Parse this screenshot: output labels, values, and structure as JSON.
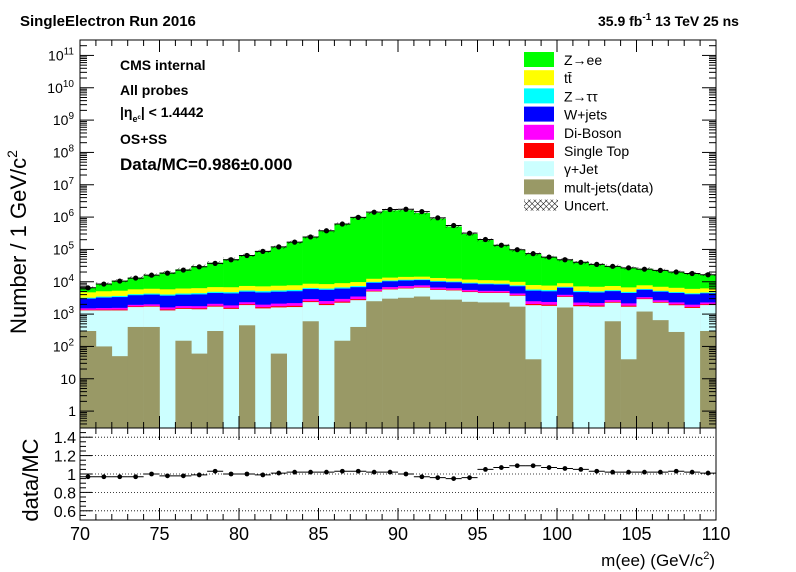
{
  "header": {
    "left_title": "SingleElectron Run 2016",
    "right_lumi": "35.9 fb",
    "right_lumi_exp": "-1",
    "right_energy": " 13 TeV 25 ns"
  },
  "annotations": {
    "cms": "CMS internal",
    "probes": "All probes",
    "eta_a": "|η",
    "eta_sub": "e",
    "eta_sub2": "c",
    "eta_b": "| < 1.4442",
    "charge": "OS+SS",
    "ratio_text": "Data/MC=0.986±0.000"
  },
  "axes": {
    "ylabel_main": "Number / 1 GeV/c",
    "ylabel_main_exp": "2",
    "ylabel_ratio": "data/MC",
    "xlabel": "m(ee) (GeV/c",
    "xlabel_exp": "2",
    "xlabel_close": ")"
  },
  "legend": [
    {
      "name": "Z→ee",
      "color": "#00ff00"
    },
    {
      "name": "tt̄",
      "color": "#ffff00"
    },
    {
      "name": "Z→ττ",
      "color": "#00ffff"
    },
    {
      "name": "W+jets",
      "color": "#0000ff"
    },
    {
      "name": "Di-Boson",
      "color": "#ff00ff"
    },
    {
      "name": "Single Top",
      "color": "#ff0000"
    },
    {
      "name": "γ+Jet",
      "color": "#ccffff"
    },
    {
      "name": "mult-jets(data)",
      "color": "#999966"
    },
    {
      "name": "Uncert.",
      "color": "hatch"
    }
  ],
  "chart_data": {
    "type": "bar",
    "x_bins": [
      70.5,
      71.5,
      72.5,
      73.5,
      74.5,
      75.5,
      76.5,
      77.5,
      78.5,
      79.5,
      80.5,
      81.5,
      82.5,
      83.5,
      84.5,
      85.5,
      86.5,
      87.5,
      88.5,
      89.5,
      90.5,
      91.5,
      92.5,
      93.5,
      94.5,
      95.5,
      96.5,
      97.5,
      98.5,
      99.5,
      100.5,
      101.5,
      102.5,
      103.5,
      104.5,
      105.5,
      106.5,
      107.5,
      108.5,
      109.5
    ],
    "xlim": [
      70,
      110
    ],
    "ylim_main": [
      0.3,
      300000000000
    ],
    "ylog": true,
    "xticks": [
      70,
      75,
      80,
      85,
      90,
      95,
      100,
      105,
      110
    ],
    "yticks_main": [
      {
        "v": 1,
        "label": "1"
      },
      {
        "v": 10,
        "label": "10"
      },
      {
        "v": 100,
        "label": "10",
        "exp": "2"
      },
      {
        "v": 1000,
        "label": "10",
        "exp": "3"
      },
      {
        "v": 10000,
        "label": "10",
        "exp": "4"
      },
      {
        "v": 100000,
        "label": "10",
        "exp": "5"
      },
      {
        "v": 1000000,
        "label": "10",
        "exp": "6"
      },
      {
        "v": 10000000,
        "label": "10",
        "exp": "7"
      },
      {
        "v": 100000000,
        "label": "10",
        "exp": "8"
      },
      {
        "v": 1000000000,
        "label": "10",
        "exp": "9"
      },
      {
        "v": 10000000000,
        "label": "10",
        "exp": "10"
      },
      {
        "v": 100000000000,
        "label": "10",
        "exp": "11"
      }
    ],
    "stack_series": [
      {
        "name": "mult-jets(data)",
        "color": "#999966",
        "values": [
          300,
          100,
          50,
          400,
          400,
          0.1,
          150,
          60,
          300,
          0.1,
          450,
          0.1,
          60,
          0.1,
          600,
          0.1,
          150,
          400,
          2500,
          3000,
          3200,
          3500,
          2800,
          2800,
          2400,
          2300,
          2300,
          1700,
          40,
          0.1,
          1600,
          0.1,
          0.1,
          600,
          40,
          1200,
          650,
          280,
          0.1,
          300
        ]
      },
      {
        "name": "γ+Jet",
        "color": "#ccffff",
        "values": [
          1000,
          1200,
          1250,
          1250,
          1300,
          1300,
          1300,
          1350,
          1400,
          1450,
          1450,
          1500,
          1550,
          1650,
          1750,
          1900,
          2100,
          2300,
          2500,
          2800,
          3000,
          3100,
          2800,
          2600,
          2400,
          2200,
          2200,
          2000,
          1850,
          1800,
          1800,
          1750,
          1700,
          1650,
          1650,
          1700,
          1600,
          1600,
          1550,
          1600
        ]
      },
      {
        "name": "Single Top",
        "color": "#ff0000",
        "values": [
          60,
          70,
          80,
          85,
          90,
          90,
          95,
          100,
          110,
          115,
          120,
          130,
          140,
          150,
          160,
          170,
          180,
          200,
          220,
          240,
          260,
          260,
          240,
          220,
          200,
          190,
          180,
          170,
          160,
          150,
          150,
          145,
          140,
          130,
          130,
          125,
          120,
          120,
          115,
          110
        ]
      },
      {
        "name": "Di-Boson",
        "color": "#ff00ff",
        "values": [
          150,
          170,
          180,
          200,
          210,
          220,
          230,
          250,
          270,
          290,
          310,
          330,
          360,
          390,
          420,
          460,
          520,
          600,
          700,
          800,
          900,
          900,
          800,
          700,
          600,
          560,
          520,
          480,
          450,
          420,
          400,
          380,
          360,
          340,
          330,
          320,
          310,
          300,
          290,
          280
        ]
      },
      {
        "name": "W+jets",
        "color": "#0000ff",
        "values": [
          1500,
          1700,
          1800,
          1900,
          2000,
          2100,
          2200,
          2300,
          2400,
          2500,
          2600,
          2700,
          2800,
          2900,
          3000,
          3100,
          3200,
          3300,
          3400,
          3500,
          3600,
          3500,
          3400,
          3300,
          3200,
          3100,
          3000,
          2900,
          2800,
          2700,
          2600,
          2500,
          2450,
          2400,
          2350,
          2300,
          2250,
          2200,
          2150,
          2100
        ]
      },
      {
        "name": "Z→ττ",
        "color": "#00ffff",
        "values": [
          200,
          250,
          280,
          300,
          320,
          340,
          360,
          380,
          400,
          420,
          440,
          460,
          480,
          500,
          520,
          540,
          560,
          580,
          600,
          620,
          640,
          620,
          600,
          580,
          560,
          540,
          520,
          500,
          480,
          460,
          440,
          420,
          400,
          380,
          360,
          340,
          320,
          300,
          280,
          260
        ]
      },
      {
        "name": "tt̄",
        "color": "#ffff00",
        "values": [
          1500,
          1600,
          1650,
          1700,
          1750,
          1800,
          1850,
          1900,
          1950,
          2000,
          2050,
          2100,
          2150,
          2200,
          2250,
          2300,
          2350,
          2400,
          2450,
          2500,
          2550,
          2500,
          2450,
          2400,
          2350,
          2300,
          2250,
          2200,
          2150,
          2100,
          2050,
          2000,
          1950,
          1900,
          1850,
          1800,
          1750,
          1700,
          1650,
          1600
        ]
      },
      {
        "name": "Z→ee",
        "color": "#00ff00",
        "values": [
          1700,
          3500,
          5500,
          7500,
          10000,
          13500,
          18000,
          24000,
          32000,
          43000,
          58000,
          80000,
          110000,
          158000,
          235000,
          370000,
          600000,
          950000,
          1350000,
          1600000,
          1630000,
          1330000,
          880000,
          500000,
          290000,
          184000,
          122000,
          86000,
          64000,
          49000,
          39000,
          32000,
          27000,
          23000,
          20000,
          17500,
          15500,
          13500,
          12000,
          10500
        ]
      }
    ],
    "data_points": [
      6500,
      8500,
      10500,
      13000,
      16000,
      18500,
      23000,
      29000,
      37000,
      48000,
      65000,
      87000,
      120000,
      168000,
      243000,
      378000,
      610000,
      980000,
      1420000,
      1720000,
      1750000,
      1480000,
      950000,
      550000,
      318000,
      203000,
      135000,
      98000,
      74000,
      58000,
      48000,
      40000,
      34500,
      30000,
      27000,
      24500,
      22500,
      20000,
      18000,
      16500
    ],
    "ratio": [
      0.97,
      0.97,
      0.97,
      0.97,
      1.0,
      0.98,
      0.98,
      0.99,
      1.03,
      1.0,
      1.0,
      0.99,
      1.01,
      1.02,
      1.02,
      1.02,
      1.03,
      1.03,
      1.02,
      1.02,
      1.0,
      0.97,
      0.96,
      0.95,
      0.96,
      1.05,
      1.07,
      1.09,
      1.09,
      1.07,
      1.06,
      1.05,
      1.03,
      1.02,
      1.02,
      1.02,
      1.02,
      1.03,
      1.02,
      1.01
    ],
    "ylim_ratio": [
      0.5,
      1.5
    ],
    "yticks_ratio": [
      {
        "v": 0.6,
        "label": "0.6"
      },
      {
        "v": 0.8,
        "label": "0.8"
      },
      {
        "v": 1.0,
        "label": "1"
      },
      {
        "v": 1.2,
        "label": "1.2"
      },
      {
        "v": 1.4,
        "label": "1.4"
      }
    ],
    "ratio_gridlines": [
      0.6,
      0.8,
      1.0,
      1.2,
      1.4
    ]
  }
}
